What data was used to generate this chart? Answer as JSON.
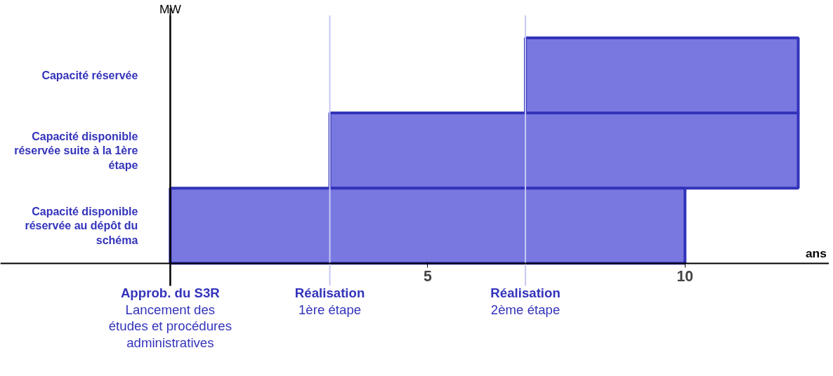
{
  "chart_data": {
    "type": "bar",
    "orientation": "horizontal",
    "xlabel": "ans",
    "ylabel": "MW",
    "categories": [
      "Capacité réservée",
      "Capacité disponible réservée suite à la 1ère étape",
      "Capacité disponible réservée au dépôt du schéma"
    ],
    "base": [
      6.9,
      3.1,
      0
    ],
    "values": [
      5.3,
      9.1,
      10
    ],
    "color": "#7878e0",
    "xlim": [
      -3.3,
      12.8
    ],
    "xticks": [
      5,
      10
    ],
    "grid": false,
    "ref_lines": [
      {
        "axis": "x",
        "value": 0,
        "label": "Approb. du S3R\nLancement des\nétudes et procédures\nadministratives",
        "color": "#000000"
      },
      {
        "axis": "x",
        "value": 3.1,
        "label": "Réalisation\n1ère étape",
        "color": "#c8c8f4"
      },
      {
        "axis": "x",
        "value": 6.9,
        "label": "Réalisation\n2ème étape",
        "color": "#c8c8f4"
      }
    ]
  }
}
